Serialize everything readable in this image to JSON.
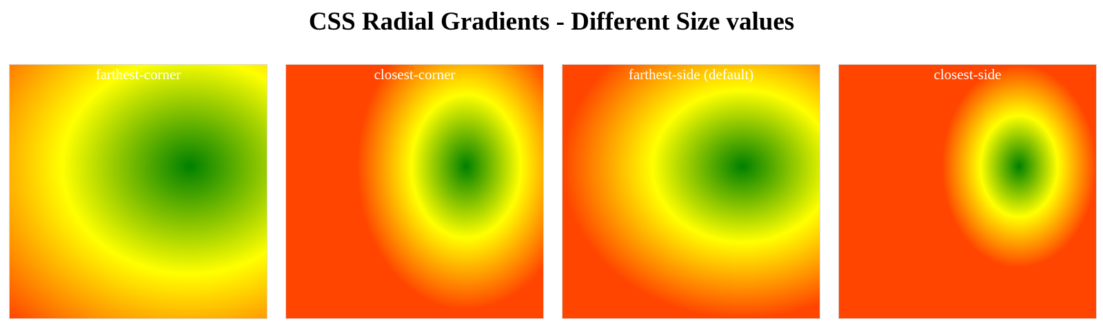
{
  "page": {
    "title": "CSS Radial Gradients - Different Size values"
  },
  "gradients": [
    {
      "label": "farthest-corner"
    },
    {
      "label": "closest-corner"
    },
    {
      "label": "farthest-side (default)"
    },
    {
      "label": "closest-side"
    }
  ],
  "colors": {
    "center": "#008000",
    "middle": "#ffff00",
    "outer": "#ff4500",
    "label_text": "#ffffff"
  }
}
